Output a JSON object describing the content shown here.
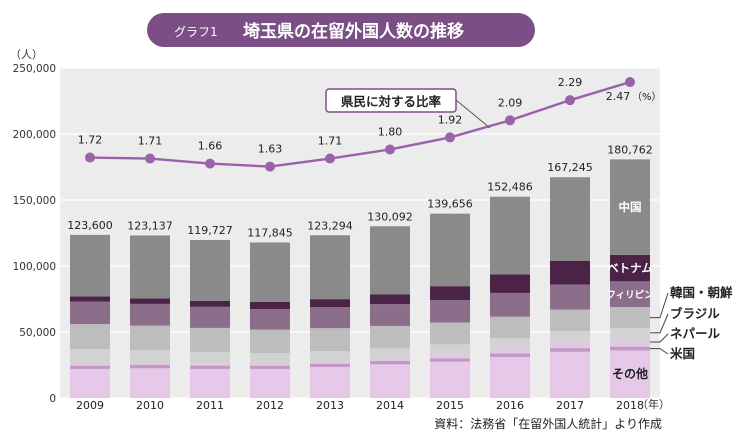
{
  "chart_data": {
    "type": "bar",
    "stacked": true,
    "title_badge": "グラフ1",
    "title": "埼玉県の在留外国人数の推移",
    "ylabel": "（人）",
    "xlabel_unit": "（年）",
    "ylim": [
      0,
      250000
    ],
    "yticks": [
      0,
      50000,
      100000,
      150000,
      200000,
      250000
    ],
    "ytick_labels": [
      "0",
      "50,000",
      "100,000",
      "150,000",
      "200,000",
      "250,000"
    ],
    "categories": [
      "2009",
      "2010",
      "2011",
      "2012",
      "2013",
      "2014",
      "2015",
      "2016",
      "2017",
      "2018"
    ],
    "totals": [
      123600,
      123137,
      119727,
      117845,
      123294,
      130092,
      139656,
      152486,
      167245,
      180762
    ],
    "total_labels": [
      "123,600",
      "123,137",
      "119,727",
      "117,845",
      "123,294",
      "130,092",
      "139,656",
      "152,486",
      "167,245",
      "180,762"
    ],
    "series": [
      {
        "name": "その他",
        "color": "#e6c9e8",
        "values": [
          22000,
          22500,
          22000,
          22000,
          23500,
          25500,
          27500,
          31000,
          35000,
          36000
        ]
      },
      {
        "name": "米国",
        "color": "#c597c8",
        "values": [
          2500,
          2500,
          2500,
          2500,
          2500,
          2600,
          2600,
          2700,
          2800,
          2900
        ]
      },
      {
        "name": "ネパール",
        "color": "#dccddd",
        "values": [
          1500,
          1600,
          1800,
          2000,
          2500,
          3000,
          4000,
          5000,
          6000,
          7000
        ]
      },
      {
        "name": "ブラジル",
        "color": "#d2d2d2",
        "values": [
          11000,
          9500,
          8500,
          7500,
          7000,
          6500,
          6500,
          6500,
          7000,
          7000
        ]
      },
      {
        "name": "韓国・朝鮮",
        "color": "#bdbdbd",
        "values": [
          19000,
          18700,
          18300,
          17800,
          17400,
          17000,
          16600,
          16400,
          16200,
          16000
        ]
      },
      {
        "name": "フィリピン",
        "color": "#8a6e8a",
        "values": [
          17000,
          16500,
          16000,
          15500,
          16000,
          16500,
          17000,
          18000,
          19000,
          19500
        ]
      },
      {
        "name": "ベトナム",
        "color": "#4b2347",
        "values": [
          4000,
          4200,
          4500,
          5500,
          6000,
          7500,
          10500,
          14000,
          18000,
          20000
        ]
      },
      {
        "name": "中国",
        "color": "#8a8a8a",
        "values": [
          46600,
          47637,
          46127,
          45045,
          48394,
          51492,
          54956,
          58886,
          63245,
          72362
        ]
      }
    ],
    "inside_labels": [
      "中国",
      "ベトナム",
      "フィリピン"
    ],
    "outside_labels": [
      "韓国・朝鮮",
      "ブラジル",
      "ネパール",
      "米国"
    ],
    "bottom_inside_label": "その他",
    "ratio_series": {
      "name": "県民に対する比率",
      "unit": "（%）",
      "values": [
        1.72,
        1.71,
        1.66,
        1.63,
        1.71,
        1.8,
        1.92,
        2.09,
        2.29,
        2.47
      ],
      "value_labels": [
        "1.72",
        "1.71",
        "1.66",
        "1.63",
        "1.71",
        "1.80",
        "1.92",
        "2.09",
        "2.29",
        "2.47"
      ],
      "color": "#9a62a8"
    },
    "source": "資料：法務省「在留外国人統計」より作成",
    "colors": {
      "plot_bg": "#ececec",
      "title_bg": "#7b4f86",
      "title_text": "#ffffff",
      "callout_border": "#7b4f86"
    }
  }
}
